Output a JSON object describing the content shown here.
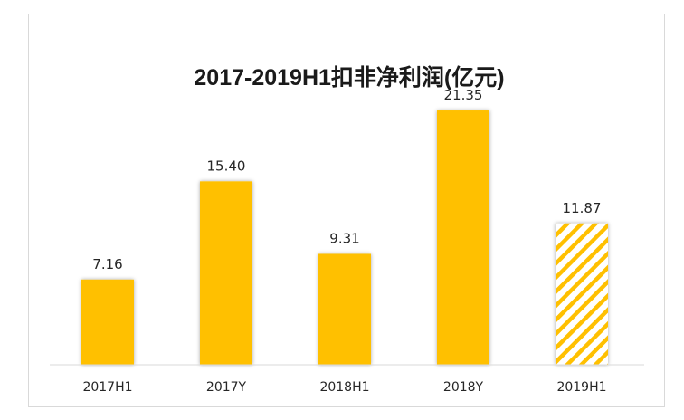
{
  "chart_data": {
    "type": "bar",
    "title": "2017-2019H1扣非净利润(亿元)",
    "categories": [
      "2017H1",
      "2017Y",
      "2018H1",
      "2018Y",
      "2019H1"
    ],
    "values": [
      7.16,
      15.4,
      9.31,
      21.35,
      11.87
    ],
    "value_labels": [
      "7.16",
      "15.40",
      "9.31",
      "21.35",
      "11.87"
    ],
    "ylim": [
      0,
      25
    ],
    "grid": false,
    "legend": "none",
    "colors": {
      "bar": "#FFC000",
      "hatch_bar": "#FFC000",
      "axis": "#d9d9d9"
    },
    "hatched_categories": [
      "2019H1"
    ]
  }
}
